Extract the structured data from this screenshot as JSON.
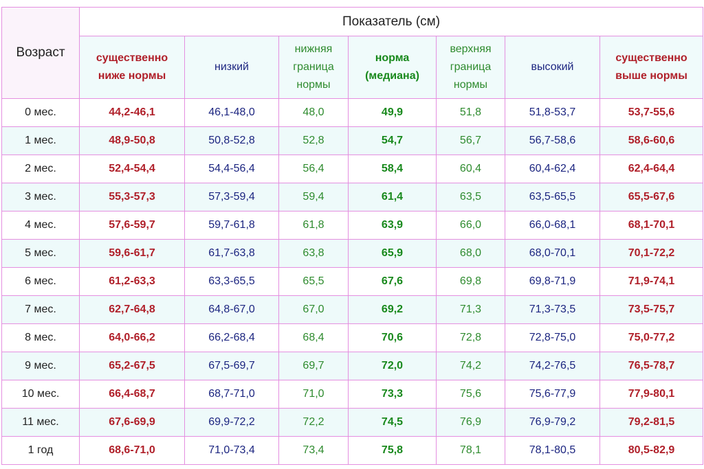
{
  "table": {
    "age_header": "Возраст",
    "group_header": "Показатель (см)",
    "columns": [
      "существенно ниже нормы",
      "низкий",
      "нижняя граница нормы",
      "норма (медиана)",
      "верхняя граница нормы",
      "высокий",
      "существенно выше нормы"
    ],
    "rows": [
      [
        "0 мес.",
        "44,2-46,1",
        "46,1-48,0",
        "48,0",
        "49,9",
        "51,8",
        "51,8-53,7",
        "53,7-55,6"
      ],
      [
        "1 мес.",
        "48,9-50,8",
        "50,8-52,8",
        "52,8",
        "54,7",
        "56,7",
        "56,7-58,6",
        "58,6-60,6"
      ],
      [
        "2 мес.",
        "52,4-54,4",
        "54,4-56,4",
        "56,4",
        "58,4",
        "60,4",
        "60,4-62,4",
        "62,4-64,4"
      ],
      [
        "3 мес.",
        "55,3-57,3",
        "57,3-59,4",
        "59,4",
        "61,4",
        "63,5",
        "63,5-65,5",
        "65,5-67,6"
      ],
      [
        "4 мес.",
        "57,6-59,7",
        "59,7-61,8",
        "61,8",
        "63,9",
        "66,0",
        "66,0-68,1",
        "68,1-70,1"
      ],
      [
        "5 мес.",
        "59,6-61,7",
        "61,7-63,8",
        "63,8",
        "65,9",
        "68,0",
        "68,0-70,1",
        "70,1-72,2"
      ],
      [
        "6 мес.",
        "61,2-63,3",
        "63,3-65,5",
        "65,5",
        "67,6",
        "69,8",
        "69,8-71,9",
        "71,9-74,1"
      ],
      [
        "7 мес.",
        "62,7-64,8",
        "64,8-67,0",
        "67,0",
        "69,2",
        "71,3",
        "71,3-73,5",
        "73,5-75,7"
      ],
      [
        "8 мес.",
        "64,0-66,2",
        "66,2-68,4",
        "68,4",
        "70,6",
        "72,8",
        "72,8-75,0",
        "75,0-77,2"
      ],
      [
        "9 мес.",
        "65,2-67,5",
        "67,5-69,7",
        "69,7",
        "72,0",
        "74,2",
        "74,2-76,5",
        "76,5-78,7"
      ],
      [
        "10 мес.",
        "66,4-68,7",
        "68,7-71,0",
        "71,0",
        "73,3",
        "75,6",
        "75,6-77,9",
        "77,9-80,1"
      ],
      [
        "11 мес.",
        "67,6-69,9",
        "69,9-72,2",
        "72,2",
        "74,5",
        "76,9",
        "76,9-79,2",
        "79,2-81,5"
      ],
      [
        "1 год",
        "68,6-71,0",
        "71,0-73,4",
        "73,4",
        "75,8",
        "78,1",
        "78,1-80,5",
        "80,5-82,9"
      ]
    ]
  }
}
